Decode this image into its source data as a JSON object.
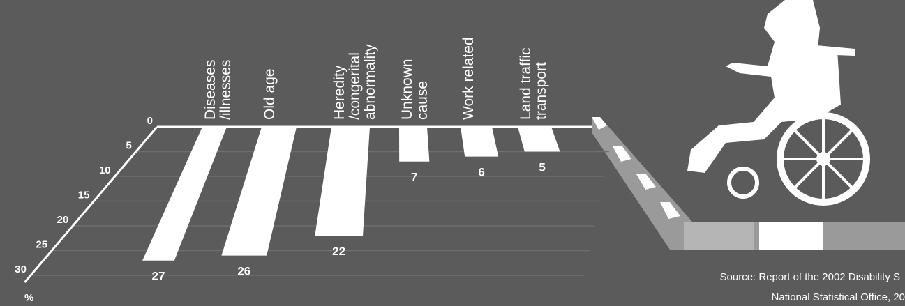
{
  "chart_data": {
    "type": "bar",
    "categories": [
      [
        "Diseases",
        "/illnesses"
      ],
      [
        "Old age"
      ],
      [
        "Heredity",
        "/congerital",
        "abnormality"
      ],
      [
        "Unknown",
        "cause"
      ],
      [
        "Work related"
      ],
      [
        "Land traffic",
        "transport"
      ]
    ],
    "values": [
      27,
      26,
      22,
      7,
      6,
      5
    ],
    "color": "#ffffff",
    "ylim": [
      0,
      30
    ],
    "yticks": [
      0,
      5,
      10,
      15,
      20,
      25,
      30
    ],
    "y_unit": "%",
    "grid": true,
    "source": [
      "Source: Report of the 2002 Disability S",
      "National Statistical Office, 20"
    ]
  }
}
